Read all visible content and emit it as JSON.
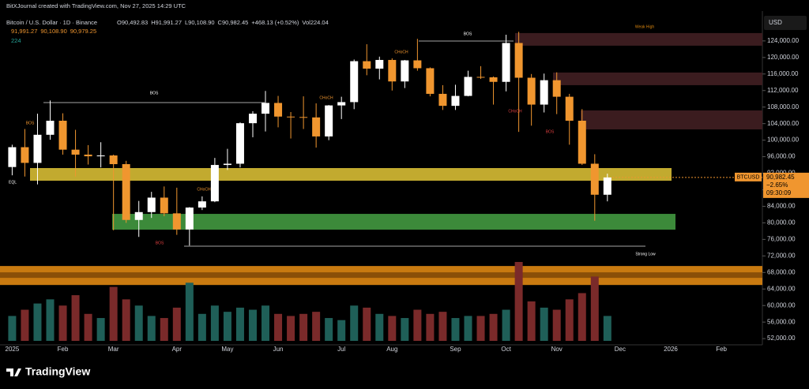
{
  "header": "BitXJournal created with TradingView.com, Nov 27, 2025 14:29 UTC",
  "brand": "TradingView",
  "chart_data": {
    "type": "candlestick",
    "title": "Bitcoin / U.S. Dollar · 1D · Binance",
    "ohlc_legend": [
      "O90,492.83",
      "H91,991.27",
      "L90,108.90",
      "C90,982.45",
      "+468.13 (+0.52%)",
      "Vol224.04"
    ],
    "indicator_legend": [
      "91,991.27",
      "90,108.90",
      "90,979.25"
    ],
    "volume_legend": "224",
    "currency": "USD",
    "up_color": "#ffffff",
    "down_color": "#f0962f",
    "categories": [
      "2025",
      null,
      null,
      null,
      "Feb",
      null,
      null,
      null,
      "Mar",
      null,
      null,
      null,
      null,
      "Apr",
      null,
      null,
      null,
      "May",
      null,
      null,
      null,
      "Jun",
      null,
      null,
      null,
      null,
      "Jul",
      null,
      null,
      null,
      "Aug",
      null,
      null,
      null,
      null,
      "Sep",
      null,
      null,
      null,
      "Oct",
      null,
      null,
      null,
      "Nov",
      null,
      null,
      null,
      null,
      "Dec",
      null,
      null,
      null,
      "2026",
      null,
      null,
      null,
      "Feb",
      null,
      null
    ],
    "open": [
      93500,
      98300,
      94500,
      101300,
      104700,
      97700,
      96500,
      96100,
      96300,
      94200,
      80700,
      82600,
      86100,
      82300,
      78400,
      83700,
      85200,
      94000,
      94300,
      104100,
      106400,
      109000,
      105700,
      105600,
      105500,
      100900,
      108400,
      109200,
      119100,
      117300,
      119400,
      114200,
      119300,
      117400,
      111200,
      108300,
      110700,
      115300,
      115200,
      114100,
      123500,
      115100,
      108600,
      114500,
      110500,
      104700,
      94300,
      86800,
      null,
      null,
      null,
      null,
      null,
      null,
      null,
      null,
      null,
      null,
      null
    ],
    "high": [
      98900,
      102700,
      106400,
      109600,
      106500,
      102500,
      98800,
      99500,
      96500,
      95000,
      85300,
      87500,
      88800,
      88500,
      83800,
      86400,
      95700,
      97900,
      104300,
      107000,
      111900,
      110700,
      106800,
      110600,
      108900,
      108500,
      110500,
      119500,
      123200,
      120200,
      119800,
      119400,
      124500,
      117600,
      113300,
      113400,
      116800,
      117900,
      115400,
      125500,
      126200,
      116000,
      116100,
      116400,
      111200,
      107500,
      96600,
      91900,
      null,
      null,
      null,
      null,
      null,
      null,
      null,
      null,
      null,
      null,
      null
    ],
    "low": [
      91500,
      91200,
      89300,
      100100,
      96500,
      91200,
      94100,
      93400,
      78200,
      80000,
      76600,
      81200,
      81600,
      77100,
      74500,
      83100,
      85000,
      92800,
      93400,
      100700,
      102100,
      103100,
      100400,
      102700,
      98200,
      100000,
      105100,
      107500,
      115700,
      114700,
      112000,
      112600,
      116800,
      110600,
      107300,
      107300,
      110600,
      114800,
      108600,
      111800,
      102000,
      103500,
      106700,
      106300,
      98900,
      94000,
      80500,
      85200,
      null,
      null,
      null,
      null,
      null,
      null,
      null,
      null,
      null,
      null,
      null
    ],
    "close": [
      98300,
      94500,
      101300,
      104700,
      97700,
      96500,
      96100,
      96300,
      94200,
      80700,
      82600,
      86100,
      82300,
      78400,
      83700,
      85200,
      94000,
      94300,
      104100,
      106400,
      109000,
      105700,
      105600,
      105500,
      100900,
      108400,
      109200,
      119100,
      117300,
      119400,
      114200,
      119300,
      117400,
      111200,
      108300,
      110700,
      115300,
      115200,
      114100,
      123500,
      115100,
      108600,
      114500,
      110500,
      104700,
      94300,
      86800,
      90982.45,
      null,
      null,
      null,
      null,
      null,
      null,
      null,
      null,
      null,
      null,
      null
    ],
    "volume": [
      1200,
      1500,
      1800,
      2000,
      1700,
      2200,
      1300,
      1100,
      2600,
      2000,
      1700,
      1200,
      1100,
      1600,
      2800,
      1300,
      1700,
      1400,
      1600,
      1500,
      1700,
      1300,
      1200,
      1300,
      1400,
      1100,
      1000,
      1700,
      1600,
      1300,
      1200,
      1100,
      1500,
      1300,
      1400,
      1100,
      1200,
      1200,
      1300,
      1500,
      3800,
      1900,
      1600,
      1500,
      2000,
      2300,
      3100,
      1200,
      null,
      null,
      null,
      null,
      null,
      null,
      null,
      null,
      null,
      null,
      null
    ],
    "ylim": [
      50500,
      129700
    ],
    "yticks": [
      {
        "value": 124000,
        "label": "124,000.00"
      },
      {
        "value": 120000,
        "label": "120,000.00"
      },
      {
        "value": 116000,
        "label": "116,000.00"
      },
      {
        "value": 112000,
        "label": "112,000.00"
      },
      {
        "value": 108000,
        "label": "108,000.00"
      },
      {
        "value": 104000,
        "label": "104,000.00"
      },
      {
        "value": 100000,
        "label": "100,000.00"
      },
      {
        "value": 96000,
        "label": "96,000.00"
      },
      {
        "value": 92000,
        "label": "92,000.00"
      },
      {
        "value": 88000,
        "label": "88,000.00"
      },
      {
        "value": 84000,
        "label": "84,000.00"
      },
      {
        "value": 80000,
        "label": "80,000.00"
      },
      {
        "value": 76000,
        "label": "76,000.00"
      },
      {
        "value": 72000,
        "label": "72,000.00"
      },
      {
        "value": 68000,
        "label": "68,000.00"
      },
      {
        "value": 64000,
        "label": "64,000.00"
      },
      {
        "value": 60000,
        "label": "60,000.00"
      },
      {
        "value": 56000,
        "label": "56,000.00"
      },
      {
        "value": 52000,
        "label": "52,000.00"
      }
    ],
    "zones": [
      {
        "low": 122850,
        "high": 125900,
        "color": "#3b1c1f"
      },
      {
        "low": 113300,
        "high": 116360,
        "color": "#3b1c1f"
      },
      {
        "low": 102600,
        "high": 107190,
        "color": "#3b1c1f"
      },
      {
        "low": 90190,
        "high": 93250,
        "color": "#c2aa2f"
      },
      {
        "low": 78350,
        "high": 82170,
        "color": "#3c8a3a"
      },
      {
        "low": 64970,
        "high": 69560,
        "color": "#c97a10"
      }
    ],
    "annotations": [
      "BOS",
      "BOS",
      "BOS",
      "Weak High",
      "Strong Low",
      "EQL",
      "CHoCH",
      "CHoCH",
      "CHoCH",
      "CHoCH",
      "BOS",
      "BOS"
    ],
    "last_price": {
      "symbol": "BTCUSD",
      "value": 90982.45,
      "label": "90,982.45",
      "change": "−2.65%",
      "countdown": "09:30:09",
      "color": "#f0962f"
    }
  }
}
